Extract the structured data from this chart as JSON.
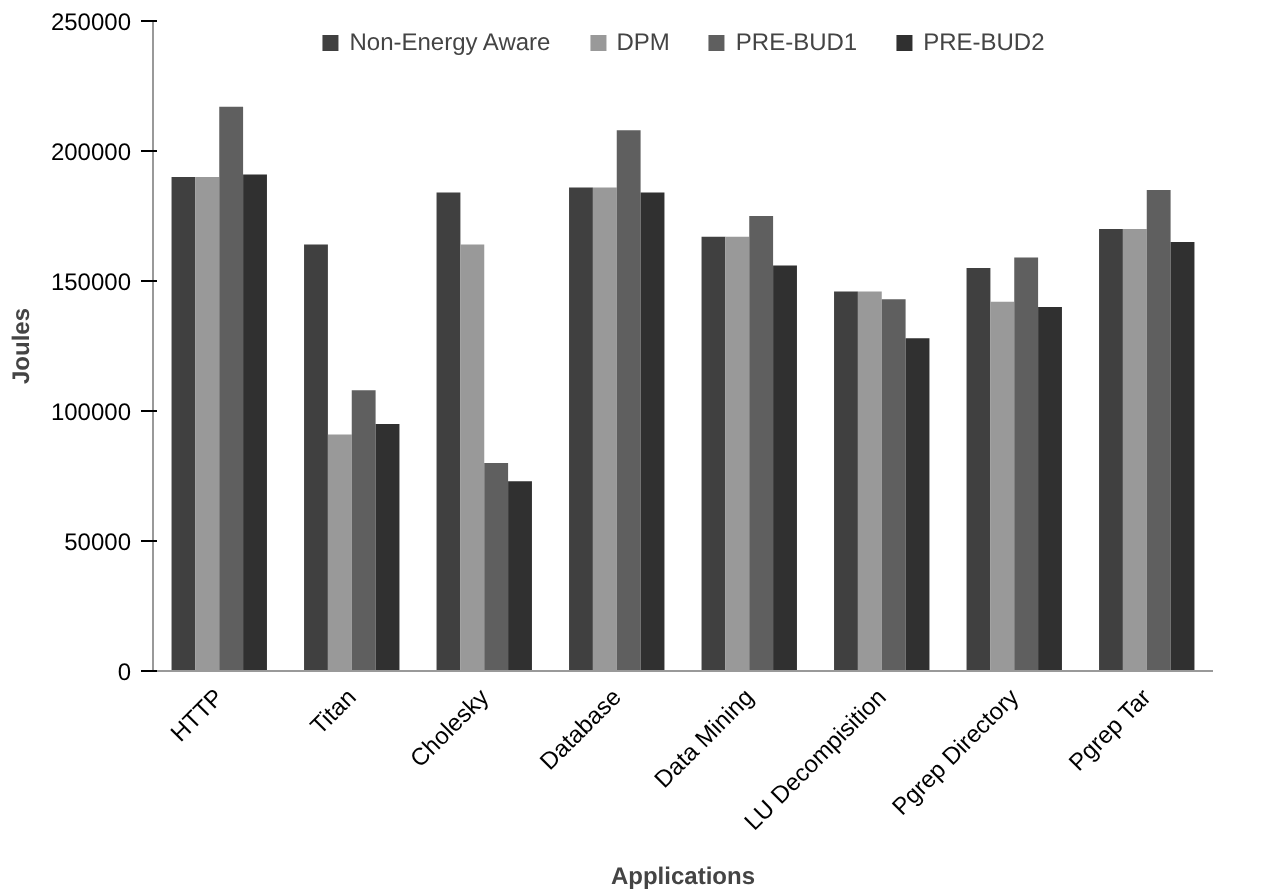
{
  "chart_data": {
    "type": "bar",
    "xlabel": "Applications",
    "ylabel": "Joules",
    "categories": [
      "HTTP",
      "Titan",
      "Cholesky",
      "Database",
      "Data Mining",
      "LU Decompisition",
      "Pgrep Directory",
      "Pgrep Tar"
    ],
    "series": [
      {
        "name": "Non-Energy Aware",
        "color": "#404040",
        "values": [
          190000,
          164000,
          184000,
          186000,
          167000,
          146000,
          155000,
          170000
        ]
      },
      {
        "name": "DPM",
        "color": "#999999",
        "values": [
          190000,
          91000,
          164000,
          186000,
          167000,
          146000,
          142000,
          170000
        ]
      },
      {
        "name": "PRE-BUD1",
        "color": "#5f5f5f",
        "values": [
          217000,
          108000,
          80000,
          208000,
          175000,
          143000,
          159000,
          185000
        ]
      },
      {
        "name": "PRE-BUD2",
        "color": "#303030",
        "values": [
          191000,
          95000,
          73000,
          184000,
          156000,
          128000,
          140000,
          165000
        ]
      }
    ],
    "ylim": [
      0,
      250000
    ],
    "yticks": [
      0,
      50000,
      100000,
      150000,
      200000,
      250000
    ],
    "grid": false,
    "legend": "top"
  }
}
